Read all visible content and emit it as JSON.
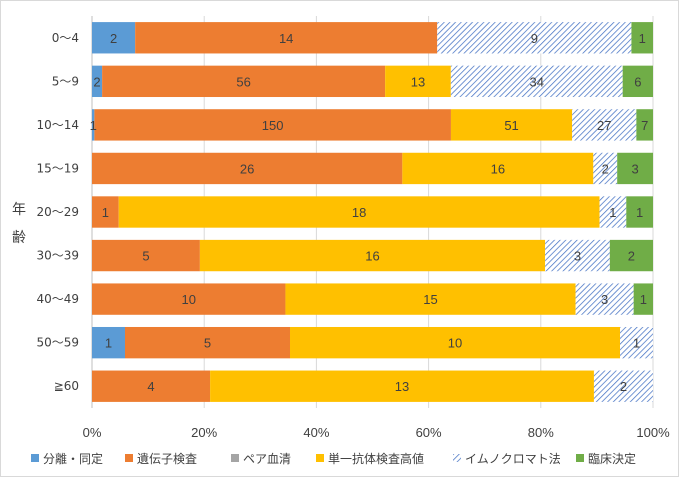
{
  "chart_data": {
    "type": "bar",
    "orientation": "horizontal",
    "stacked": "percent",
    "title": "",
    "ylabel": "年齢",
    "xlabel": "",
    "xlim": [
      0,
      100
    ],
    "x_tick_labels": [
      "0%",
      "20%",
      "40%",
      "60%",
      "80%",
      "100%"
    ],
    "grid": "vertical",
    "legend_position": "bottom",
    "categories": [
      "0〜4",
      "5〜9",
      "10〜14",
      "15〜19",
      "20〜29",
      "30〜39",
      "40〜49",
      "50〜59",
      "≧60"
    ],
    "series": [
      {
        "name": "分離・同定",
        "color": "#5b9bd5",
        "pattern": "solid",
        "values": [
          2,
          2,
          1,
          0,
          0,
          0,
          0,
          1,
          0
        ]
      },
      {
        "name": "遺伝子検査",
        "color": "#ed7d31",
        "pattern": "solid",
        "values": [
          14,
          56,
          150,
          26,
          1,
          5,
          10,
          5,
          4
        ]
      },
      {
        "name": "ペア血清",
        "color": "#a5a5a5",
        "pattern": "solid",
        "values": [
          0,
          0,
          0,
          0,
          0,
          0,
          0,
          0,
          0
        ]
      },
      {
        "name": "単一抗体検査高値",
        "color": "#ffc000",
        "pattern": "solid",
        "values": [
          0,
          13,
          51,
          16,
          18,
          16,
          15,
          10,
          13
        ]
      },
      {
        "name": "イムノクロマト法",
        "color": "#4472c4",
        "pattern": "hatch",
        "values": [
          9,
          34,
          27,
          2,
          1,
          3,
          3,
          1,
          2
        ]
      },
      {
        "name": "臨床決定",
        "color": "#70ad47",
        "pattern": "solid",
        "values": [
          1,
          6,
          7,
          3,
          1,
          2,
          1,
          0,
          0
        ]
      }
    ]
  }
}
